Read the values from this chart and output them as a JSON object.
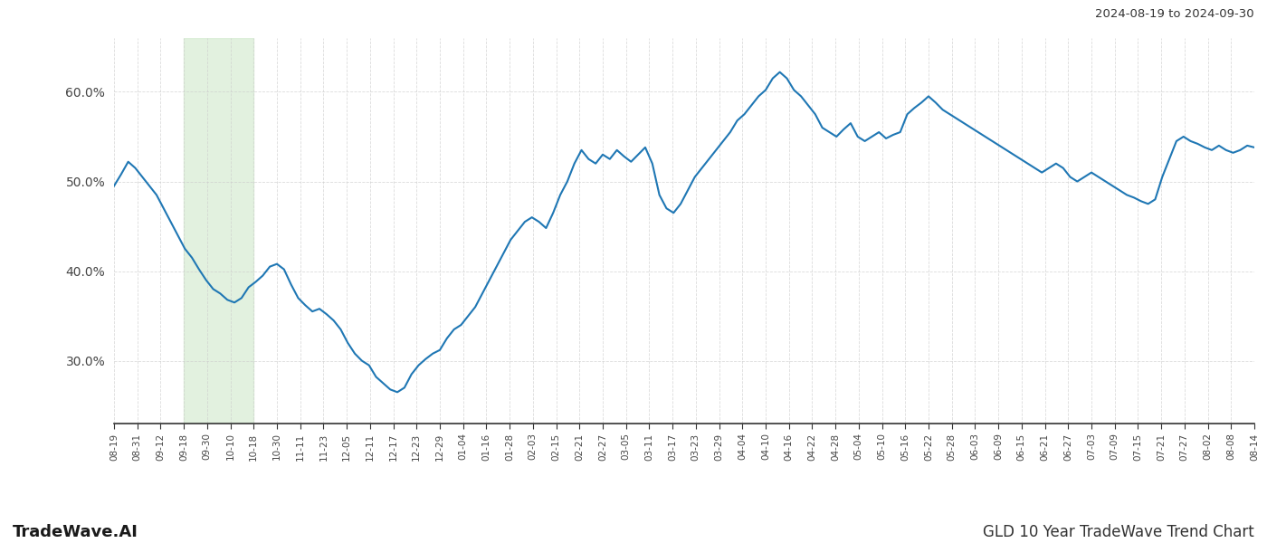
{
  "title_right": "2024-08-19 to 2024-09-30",
  "footer_left": "TradeWave.AI",
  "footer_right": "GLD 10 Year TradeWave Trend Chart",
  "line_color": "#1f77b4",
  "line_width": 1.5,
  "bg_color": "#ffffff",
  "grid_color": "#cccccc",
  "shade_color": "#d6ecd2",
  "shade_alpha": 0.7,
  "ylim": [
    23,
    66
  ],
  "yticks": [
    30.0,
    40.0,
    50.0,
    60.0
  ],
  "ytick_labels": [
    "30.0%",
    "40.0%",
    "50.0%",
    "60.0%"
  ],
  "x_labels": [
    "08-19",
    "08-31",
    "09-12",
    "09-18",
    "09-30",
    "10-10",
    "10-18",
    "10-30",
    "11-11",
    "11-23",
    "12-05",
    "12-11",
    "12-17",
    "12-23",
    "12-29",
    "01-04",
    "01-16",
    "01-28",
    "02-03",
    "02-15",
    "02-21",
    "02-27",
    "03-05",
    "03-11",
    "03-17",
    "03-23",
    "03-29",
    "04-04",
    "04-10",
    "04-16",
    "04-22",
    "04-28",
    "05-04",
    "05-10",
    "05-16",
    "05-22",
    "05-28",
    "06-03",
    "06-09",
    "06-15",
    "06-21",
    "06-27",
    "07-03",
    "07-09",
    "07-15",
    "07-21",
    "07-27",
    "08-02",
    "08-08",
    "08-14"
  ],
  "shade_start_label": "09-18",
  "shade_end_label": "10-18",
  "y_values": [
    49.5,
    50.8,
    52.2,
    51.5,
    50.5,
    49.5,
    48.5,
    47.0,
    45.5,
    44.0,
    42.5,
    41.5,
    40.2,
    39.0,
    38.0,
    37.5,
    36.8,
    36.5,
    37.0,
    38.2,
    38.8,
    39.5,
    40.5,
    40.8,
    40.2,
    38.5,
    37.0,
    36.2,
    35.5,
    35.8,
    35.2,
    34.5,
    33.5,
    32.0,
    30.8,
    30.0,
    29.5,
    28.2,
    27.5,
    26.8,
    26.5,
    27.0,
    28.5,
    29.5,
    30.2,
    30.8,
    31.2,
    32.5,
    33.5,
    34.0,
    35.0,
    36.0,
    37.5,
    39.0,
    40.5,
    42.0,
    43.5,
    44.5,
    45.5,
    46.0,
    45.5,
    44.8,
    46.5,
    48.5,
    50.0,
    52.0,
    53.5,
    52.5,
    52.0,
    53.0,
    52.5,
    53.5,
    52.8,
    52.2,
    53.0,
    53.8,
    52.0,
    48.5,
    47.0,
    46.5,
    47.5,
    49.0,
    50.5,
    51.5,
    52.5,
    53.5,
    54.5,
    55.5,
    56.8,
    57.5,
    58.5,
    59.5,
    60.2,
    61.5,
    62.2,
    61.5,
    60.2,
    59.5,
    58.5,
    57.5,
    56.0,
    55.5,
    55.0,
    55.8,
    56.5,
    55.0,
    54.5,
    55.0,
    55.5,
    54.8,
    55.2,
    55.5,
    57.5,
    58.2,
    58.8,
    59.5,
    58.8,
    58.0,
    57.5,
    57.0,
    56.5,
    56.0,
    55.5,
    55.0,
    54.5,
    54.0,
    53.5,
    53.0,
    52.5,
    52.0,
    51.5,
    51.0,
    51.5,
    52.0,
    51.5,
    50.5,
    50.0,
    50.5,
    51.0,
    50.5,
    50.0,
    49.5,
    49.0,
    48.5,
    48.2,
    47.8,
    47.5,
    48.0,
    50.5,
    52.5,
    54.5,
    55.0,
    54.5,
    54.2,
    53.8,
    53.5,
    54.0,
    53.5,
    53.2,
    53.5,
    54.0,
    53.8
  ]
}
